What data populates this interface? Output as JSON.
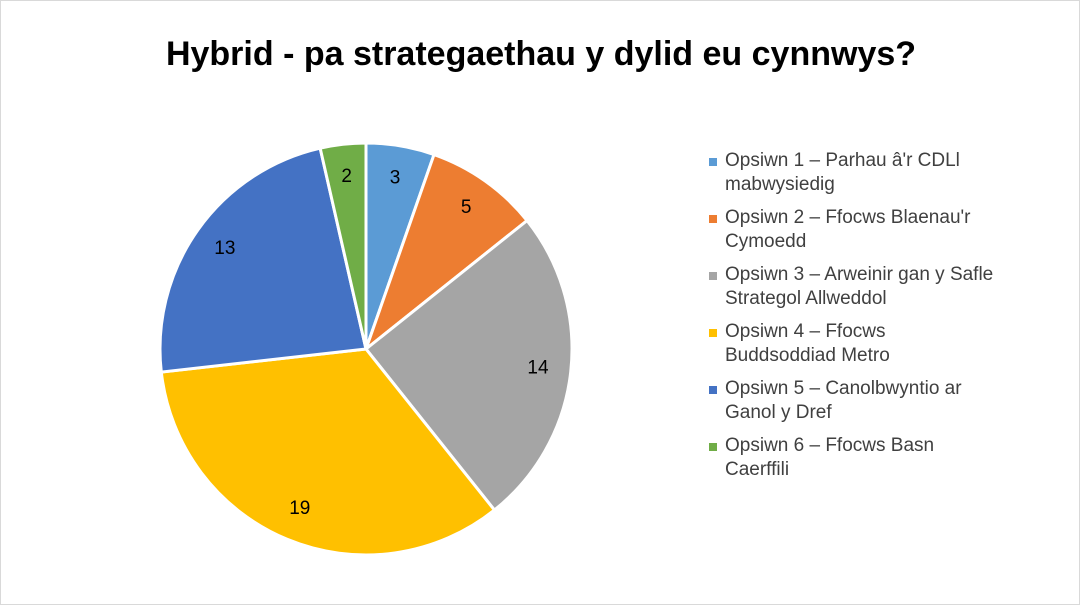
{
  "chart_data": {
    "type": "pie",
    "title": "Hybrid - pa strategaethau y dylid eu cynnwys?",
    "categories": [
      "Opsiwn 1 – Parhau â'r CDLl mabwysiedig",
      "Opsiwn 2 – Ffocws Blaenau'r Cymoedd",
      "Opsiwn 3 – Arweinir gan y Safle Strategol Allweddol",
      "Opsiwn 4 – Ffocws Buddsoddiad Metro",
      "Opsiwn 5 – Canolbwyntio ar Ganol y Dref",
      "Opsiwn 6 – Ffocws Basn Caerffili"
    ],
    "values": [
      3,
      5,
      14,
      19,
      13,
      2
    ],
    "colors": [
      "#5b9bd5",
      "#ed7d31",
      "#a5a5a5",
      "#ffc000",
      "#4472c4",
      "#70ad47"
    ],
    "legend": "right"
  }
}
